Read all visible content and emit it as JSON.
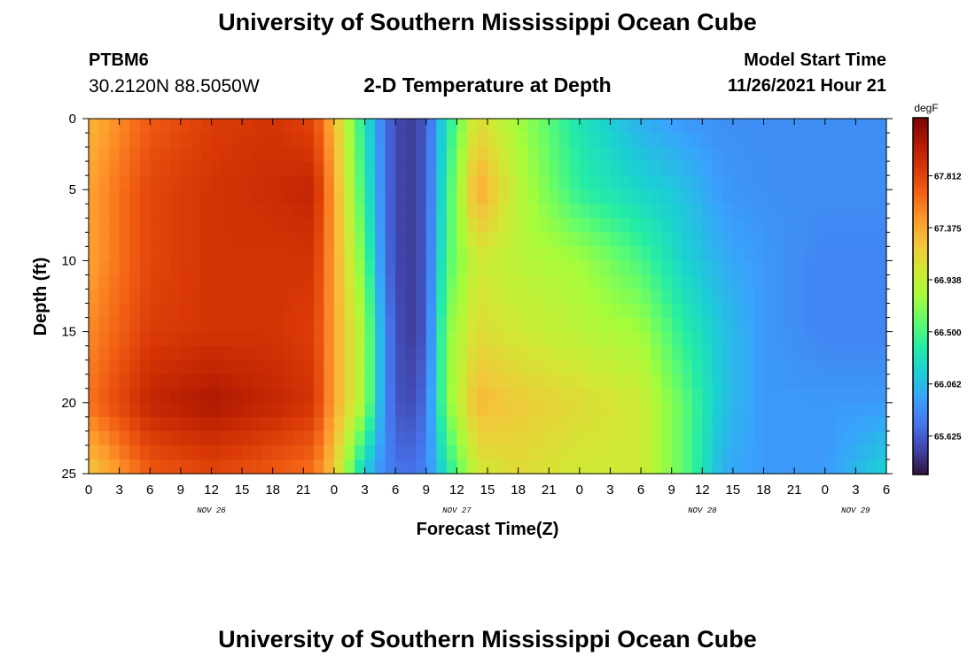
{
  "header": {
    "title": "University of Southern Mississippi Ocean Cube",
    "station_id": "PTBM6",
    "coordinates": "30.2120N  88.5050W",
    "subtitle": "2-D Temperature at Depth",
    "model_start_label": "Model Start Time",
    "model_start_value": "11/26/2021 Hour 21"
  },
  "footer": {
    "title": "University of Southern Mississippi Ocean Cube"
  },
  "chart_data": {
    "type": "heatmap",
    "title": "2-D Temperature at Depth",
    "xlabel": "Forecast Time(Z)",
    "ylabel": "Depth (ft)",
    "ylim": [
      0,
      25
    ],
    "y_reversed": true,
    "y_ticks": [
      "0",
      "5",
      "10",
      "15",
      "20",
      "25"
    ],
    "x_tick_labels": [
      "0",
      "3",
      "6",
      "9",
      "12",
      "15",
      "18",
      "21",
      "0",
      "3",
      "6",
      "9",
      "12",
      "15",
      "18",
      "21",
      "0",
      "3",
      "6",
      "9",
      "12",
      "15",
      "18",
      "21",
      "0",
      "3",
      "6"
    ],
    "x_date_labels": [
      {
        "label": "NOV 26",
        "tick_index": 4
      },
      {
        "label": "NOV 27",
        "tick_index": 12
      },
      {
        "label": "NOV 28",
        "tick_index": 20
      },
      {
        "label": "NOV 29",
        "tick_index": 25
      }
    ],
    "x_hours_range": [
      0,
      78
    ],
    "colorbar": {
      "unit": "degF",
      "ticks": [
        "67.812",
        "67.375",
        "66.938",
        "66.500",
        "66.062",
        "65.625"
      ],
      "tick_values": [
        67.812,
        67.375,
        66.938,
        66.5,
        66.062,
        65.625
      ],
      "range": [
        65.3,
        68.3
      ],
      "colors": [
        "#30123b",
        "#4145ab",
        "#4675ed",
        "#39a2fc",
        "#1bcfd4",
        "#24eca6",
        "#61fc6c",
        "#a4fc3b",
        "#d1e834",
        "#f3c63a",
        "#fe9b2d",
        "#f36315",
        "#d93806",
        "#b11901",
        "#7a0402"
      ]
    },
    "depth_levels_ft": [
      0,
      5,
      10,
      15,
      20,
      25
    ],
    "time_hours": [
      0,
      6,
      12,
      18,
      22,
      24,
      27,
      29,
      31,
      33,
      35,
      38,
      42,
      48,
      54,
      58,
      62,
      66,
      72,
      78
    ],
    "temperature_degF": [
      [
        67.3,
        67.7,
        67.85,
        67.9,
        67.8,
        67.3,
        66.3,
        65.7,
        65.45,
        65.6,
        66.3,
        67.1,
        66.8,
        66.3,
        66.0,
        65.9,
        65.85,
        65.85,
        65.85,
        65.85
      ],
      [
        67.4,
        67.8,
        67.9,
        67.95,
        68.0,
        67.4,
        66.4,
        65.7,
        65.45,
        65.6,
        66.4,
        67.4,
        66.9,
        66.4,
        66.2,
        66.1,
        65.9,
        65.85,
        65.85,
        65.85
      ],
      [
        67.4,
        67.8,
        67.9,
        67.9,
        67.9,
        67.4,
        66.6,
        65.7,
        65.45,
        65.6,
        66.5,
        67.0,
        66.9,
        66.8,
        66.5,
        66.2,
        66.0,
        65.9,
        65.8,
        65.8
      ],
      [
        67.5,
        67.85,
        67.9,
        67.9,
        67.85,
        67.4,
        66.8,
        65.8,
        65.45,
        65.6,
        66.7,
        67.1,
        67.0,
        66.9,
        66.8,
        66.4,
        66.1,
        65.9,
        65.8,
        65.8
      ],
      [
        67.6,
        68.0,
        68.1,
        68.0,
        67.9,
        67.4,
        66.8,
        65.8,
        65.5,
        65.7,
        66.7,
        67.3,
        67.2,
        67.1,
        67.0,
        66.6,
        66.1,
        65.9,
        65.9,
        65.9
      ],
      [
        67.2,
        67.7,
        67.8,
        67.7,
        67.6,
        67.2,
        66.1,
        65.8,
        65.7,
        65.8,
        66.3,
        67.0,
        67.1,
        67.0,
        67.0,
        66.6,
        66.0,
        65.9,
        65.9,
        66.2
      ]
    ]
  }
}
